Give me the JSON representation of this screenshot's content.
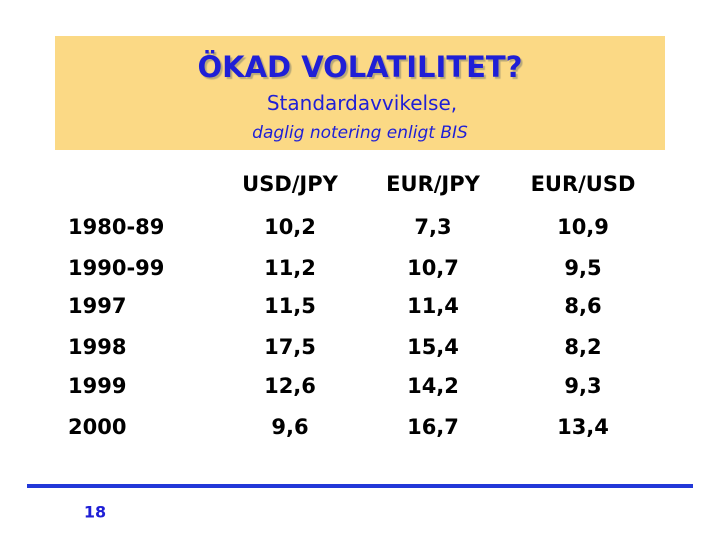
{
  "header": {
    "title": "ÖKAD VOLATILITET?",
    "subtitle": "Standardavvikelse,",
    "note": "daglig notering enligt BIS"
  },
  "table": {
    "columns": [
      "USD/JPY",
      "EUR/JPY",
      "EUR/USD"
    ],
    "rows": [
      [
        "1980-89",
        "10,2",
        "7,3",
        "10,9"
      ],
      [
        "1990-99",
        "11,2",
        "10,7",
        "9,5"
      ],
      [
        "1997",
        "11,5",
        "11,4",
        "8,6"
      ],
      [
        "1998",
        "17,5",
        "15,4",
        "8,2"
      ],
      [
        "1999",
        "12,6",
        "14,2",
        "9,3"
      ],
      [
        "2000",
        "9,6",
        "16,7",
        "13,4"
      ]
    ]
  },
  "footer": {
    "page": "18"
  }
}
